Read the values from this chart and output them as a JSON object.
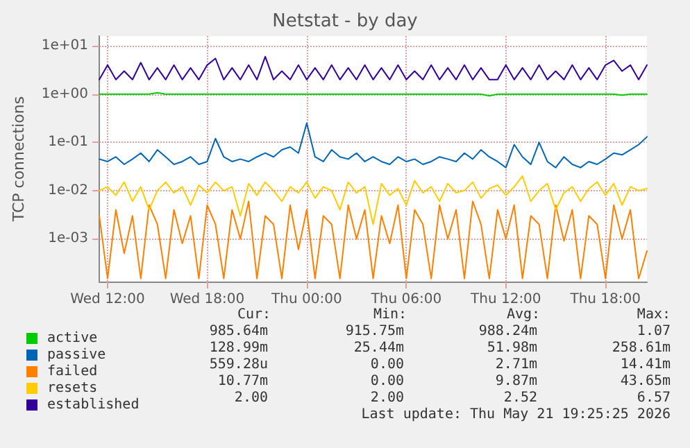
{
  "chart_data": {
    "type": "line",
    "title": "Netstat - by day",
    "ylabel": "TCP connections",
    "log": "y",
    "grid": true,
    "legend": "bottom",
    "marker": "none",
    "line_style": "solid",
    "ylim": [
      0.00013,
      16
    ],
    "yticks": [
      {
        "value": 0.001,
        "label": "1e-03"
      },
      {
        "value": 0.01,
        "label": "1e-02"
      },
      {
        "value": 0.1,
        "label": "1e-01"
      },
      {
        "value": 1,
        "label": "1e+00"
      },
      {
        "value": 10,
        "label": "1e+01"
      }
    ],
    "xlim": [
      "2026-05-20T11:30",
      "2026-05-21T20:30"
    ],
    "xticks": [
      {
        "value": "2026-05-20T12:00",
        "label": "Wed 12:00"
      },
      {
        "value": "2026-05-20T18:00",
        "label": "Wed 18:00"
      },
      {
        "value": "2026-05-21T00:00",
        "label": "Thu 00:00"
      },
      {
        "value": "2026-05-21T06:00",
        "label": "Thu 06:00"
      },
      {
        "value": "2026-05-21T12:00",
        "label": "Thu 12:00"
      },
      {
        "value": "2026-05-21T18:00",
        "label": "Thu 18:00"
      }
    ],
    "x": [
      "2026-05-20T11:30",
      "2026-05-20T12:00",
      "2026-05-20T12:30",
      "2026-05-20T13:00",
      "2026-05-20T13:30",
      "2026-05-20T14:00",
      "2026-05-20T14:30",
      "2026-05-20T15:00",
      "2026-05-20T15:30",
      "2026-05-20T16:00",
      "2026-05-20T16:30",
      "2026-05-20T17:00",
      "2026-05-20T17:30",
      "2026-05-20T18:00",
      "2026-05-20T18:30",
      "2026-05-20T19:00",
      "2026-05-20T19:30",
      "2026-05-20T20:00",
      "2026-05-20T20:30",
      "2026-05-20T21:00",
      "2026-05-20T21:30",
      "2026-05-20T22:00",
      "2026-05-20T22:30",
      "2026-05-20T23:00",
      "2026-05-20T23:30",
      "2026-05-21T00:00",
      "2026-05-21T00:30",
      "2026-05-21T01:00",
      "2026-05-21T01:30",
      "2026-05-21T02:00",
      "2026-05-21T02:30",
      "2026-05-21T03:00",
      "2026-05-21T03:30",
      "2026-05-21T04:00",
      "2026-05-21T04:30",
      "2026-05-21T05:00",
      "2026-05-21T05:30",
      "2026-05-21T06:00",
      "2026-05-21T06:30",
      "2026-05-21T07:00",
      "2026-05-21T07:30",
      "2026-05-21T08:00",
      "2026-05-21T08:30",
      "2026-05-21T09:00",
      "2026-05-21T09:30",
      "2026-05-21T10:00",
      "2026-05-21T10:30",
      "2026-05-21T11:00",
      "2026-05-21T11:30",
      "2026-05-21T12:00",
      "2026-05-21T12:30",
      "2026-05-21T13:00",
      "2026-05-21T13:30",
      "2026-05-21T14:00",
      "2026-05-21T14:30",
      "2026-05-21T15:00",
      "2026-05-21T15:30",
      "2026-05-21T16:00",
      "2026-05-21T16:30",
      "2026-05-21T17:00",
      "2026-05-21T17:30",
      "2026-05-21T18:00",
      "2026-05-21T18:30",
      "2026-05-21T19:00",
      "2026-05-21T19:30",
      "2026-05-21T20:00",
      "2026-05-21T20:30"
    ],
    "series": [
      {
        "name": "active",
        "color": "#00cc00",
        "values": [
          1,
          1,
          1,
          1,
          1,
          1,
          1,
          1.07,
          1,
          1,
          1,
          1,
          1,
          1,
          1,
          1,
          1,
          1,
          1,
          1,
          1,
          1,
          1,
          1,
          1,
          1,
          1,
          1,
          1,
          1,
          1,
          1,
          1,
          1,
          1,
          1,
          1,
          1,
          1,
          1,
          1,
          1,
          1,
          1,
          1,
          1,
          1,
          0.92,
          1,
          1,
          1,
          1,
          1,
          1,
          1,
          1,
          1,
          1,
          1,
          1,
          1,
          1,
          1,
          0.95,
          1,
          1,
          1
        ]
      },
      {
        "name": "passive",
        "color": "#0066b3",
        "values": [
          0.045,
          0.04,
          0.05,
          0.035,
          0.045,
          0.06,
          0.04,
          0.07,
          0.05,
          0.035,
          0.04,
          0.05,
          0.035,
          0.04,
          0.12,
          0.05,
          0.04,
          0.045,
          0.04,
          0.05,
          0.06,
          0.05,
          0.07,
          0.08,
          0.06,
          0.25,
          0.05,
          0.04,
          0.07,
          0.05,
          0.045,
          0.06,
          0.04,
          0.05,
          0.04,
          0.035,
          0.05,
          0.04,
          0.045,
          0.035,
          0.04,
          0.05,
          0.045,
          0.04,
          0.06,
          0.045,
          0.07,
          0.05,
          0.04,
          0.03,
          0.09,
          0.05,
          0.035,
          0.1,
          0.04,
          0.03,
          0.05,
          0.035,
          0.03,
          0.04,
          0.035,
          0.045,
          0.06,
          0.055,
          0.07,
          0.09,
          0.13
        ]
      },
      {
        "name": "failed",
        "color": "#ff8000",
        "values": [
          0.003,
          0.00015,
          0.004,
          0.0005,
          0.003,
          0.00015,
          0.005,
          0.002,
          0.00015,
          0.004,
          0.0008,
          0.003,
          0.00015,
          0.005,
          0.002,
          0.00015,
          0.004,
          0.001,
          0.006,
          0.00015,
          0.003,
          0.002,
          0.00015,
          0.005,
          0.0006,
          0.004,
          0.00015,
          0.003,
          0.002,
          0.00015,
          0.005,
          0.001,
          0.004,
          0.00015,
          0.003,
          0.0008,
          0.005,
          0.00015,
          0.004,
          0.002,
          0.00015,
          0.005,
          0.001,
          0.004,
          0.00015,
          0.006,
          0.002,
          0.00015,
          0.004,
          0.001,
          0.005,
          0.00015,
          0.003,
          0.002,
          0.00015,
          0.005,
          0.0009,
          0.004,
          0.00015,
          0.003,
          0.002,
          0.00015,
          0.005,
          0.001,
          0.004,
          0.00015,
          0.00056
        ]
      },
      {
        "name": "resets",
        "color": "#ffcc00",
        "values": [
          0.01,
          0.012,
          0.008,
          0.015,
          0.006,
          0.012,
          0.004,
          0.01,
          0.015,
          0.009,
          0.012,
          0.005,
          0.013,
          0.009,
          0.015,
          0.01,
          0.012,
          0.003,
          0.014,
          0.008,
          0.015,
          0.01,
          0.006,
          0.012,
          0.009,
          0.015,
          0.007,
          0.012,
          0.01,
          0.004,
          0.015,
          0.009,
          0.012,
          0.002,
          0.014,
          0.008,
          0.011,
          0.005,
          0.016,
          0.009,
          0.012,
          0.006,
          0.014,
          0.009,
          0.01,
          0.015,
          0.007,
          0.011,
          0.013,
          0.008,
          0.012,
          0.02,
          0.006,
          0.01,
          0.014,
          0.004,
          0.009,
          0.012,
          0.006,
          0.011,
          0.015,
          0.008,
          0.014,
          0.005,
          0.012,
          0.01,
          0.011
        ]
      },
      {
        "name": "established",
        "color": "#330099",
        "values": [
          2,
          4,
          2,
          3,
          2,
          4.5,
          2,
          3.5,
          2,
          4,
          2,
          3.5,
          2,
          4,
          5.5,
          2,
          3.5,
          2,
          4,
          2,
          6,
          2,
          3,
          2,
          4,
          2,
          3.5,
          2,
          4,
          2,
          3.5,
          2,
          4,
          2,
          3.5,
          2,
          4,
          2,
          3,
          2,
          4,
          2,
          3.5,
          2,
          4,
          2,
          3.5,
          2,
          2,
          4,
          2,
          3.5,
          2,
          4,
          2,
          3,
          2,
          4,
          2,
          3.5,
          2,
          4,
          5,
          3,
          4,
          2,
          4
        ]
      }
    ],
    "annotations": [
      "Cur:",
      "Min:",
      "Avg:",
      "Max:",
      "985.64m",
      "915.75m",
      "988.24m",
      "1.07",
      "128.99m",
      "25.44m",
      "51.98m",
      "258.61m",
      "559.28u",
      "0.00",
      "2.71m",
      "14.41m",
      "10.77m",
      "0.00",
      "9.87m",
      "43.65m",
      "2.00",
      "2.00",
      "2.52",
      "6.57",
      "Last update: Thu May 21 19:25:25 2026"
    ]
  }
}
